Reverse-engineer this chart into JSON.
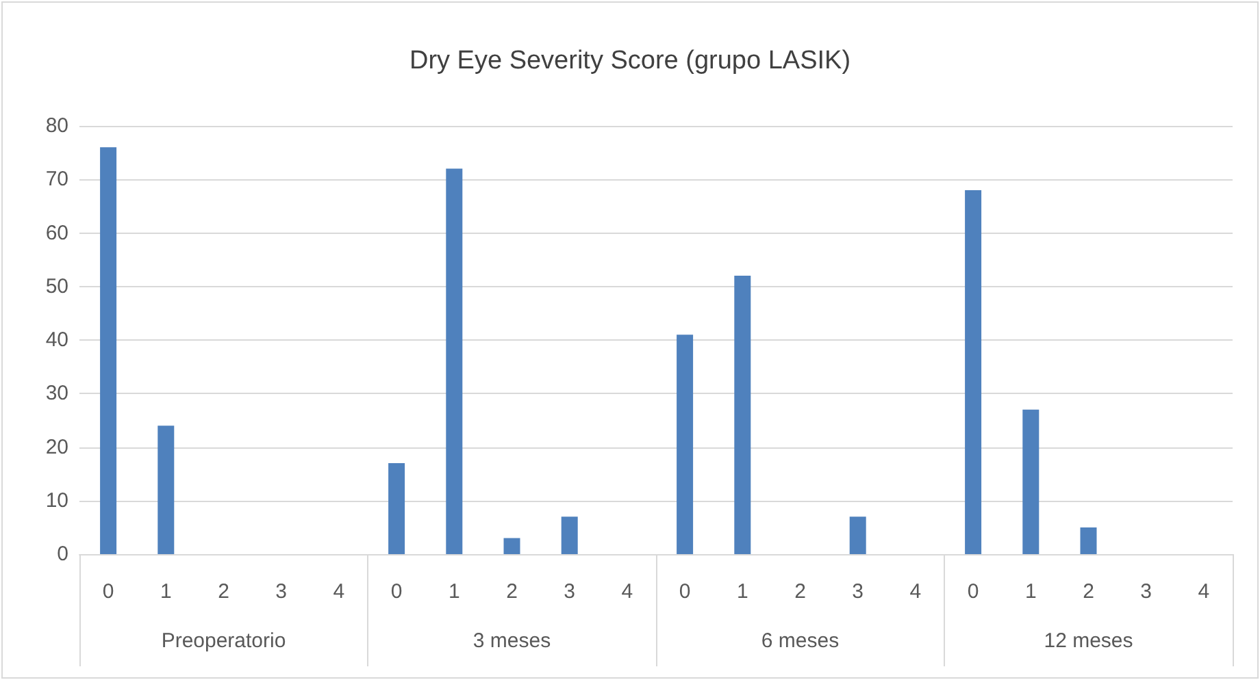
{
  "chart_data": {
    "type": "bar",
    "title": "Dry Eye Severity Score (grupo LASIK)",
    "categories": [
      "0",
      "1",
      "2",
      "3",
      "4",
      "0",
      "1",
      "2",
      "3",
      "4",
      "0",
      "1",
      "2",
      "3",
      "4",
      "0",
      "1",
      "2",
      "3",
      "4"
    ],
    "values": [
      76,
      24,
      0,
      0,
      0,
      17,
      72,
      3,
      7,
      0,
      41,
      52,
      0,
      7,
      0,
      68,
      27,
      5,
      0,
      0
    ],
    "color": "#4f81bd",
    "annotations": [
      "Preoperatorio",
      "3 meses",
      "6 meses",
      "12 meses"
    ],
    "ylim": [
      0,
      80
    ],
    "yticks": [
      0,
      10,
      20,
      30,
      40,
      50,
      60,
      70,
      80
    ],
    "grid": "y"
  }
}
